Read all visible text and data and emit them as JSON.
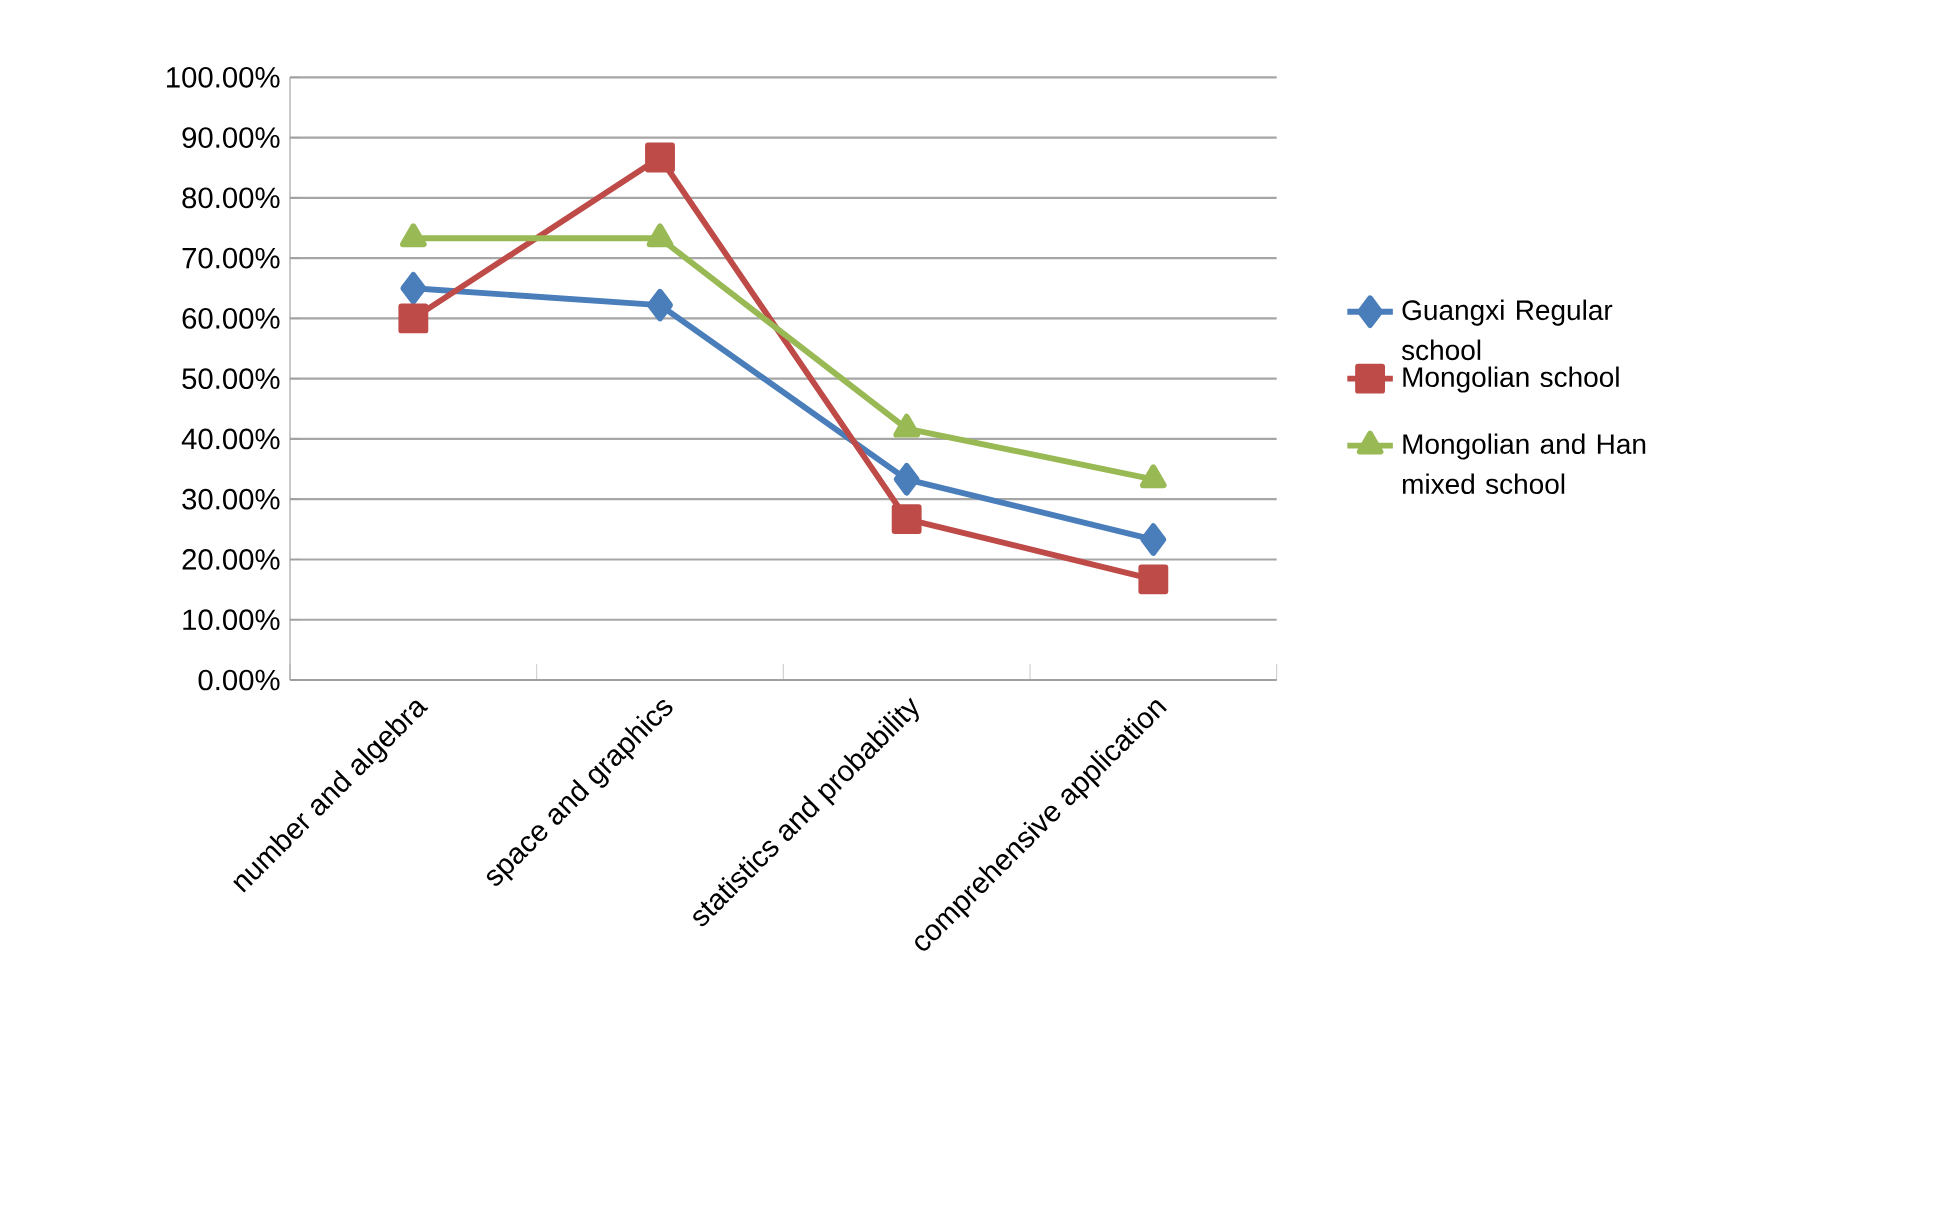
{
  "chart_data": {
    "type": "line",
    "categories": [
      "number and algebra",
      "space and graphics",
      "statistics and probability",
      "comprehensive application"
    ],
    "series": [
      {
        "name": "Guangxi Regular school",
        "color": "#4a7ebb",
        "marker": "diamond",
        "values": [
          65.0,
          62.2,
          33.3,
          23.3
        ]
      },
      {
        "name": "Mongolian school",
        "color": "#be4b48",
        "marker": "square",
        "values": [
          60.0,
          86.7,
          26.7,
          16.7
        ]
      },
      {
        "name": "Mongolian and Han mixed school",
        "color": "#98b954",
        "marker": "triangle",
        "values": [
          73.3,
          73.3,
          41.7,
          33.3
        ]
      }
    ],
    "ylim": [
      0,
      100
    ],
    "yticks": [
      {
        "value": 0,
        "label": "0.00%"
      },
      {
        "value": 10,
        "label": "10.00%"
      },
      {
        "value": 20,
        "label": "20.00%"
      },
      {
        "value": 30,
        "label": "30.00%"
      },
      {
        "value": 40,
        "label": "40.00%"
      },
      {
        "value": 50,
        "label": "50.00%"
      },
      {
        "value": 60,
        "label": "60.00%"
      },
      {
        "value": 70,
        "label": "70.00%"
      },
      {
        "value": 80,
        "label": "80.00%"
      },
      {
        "value": 90,
        "label": "90.00%"
      },
      {
        "value": 100,
        "label": "100.00%"
      }
    ],
    "grid": "y",
    "legend": "right",
    "line_style": "solid"
  }
}
